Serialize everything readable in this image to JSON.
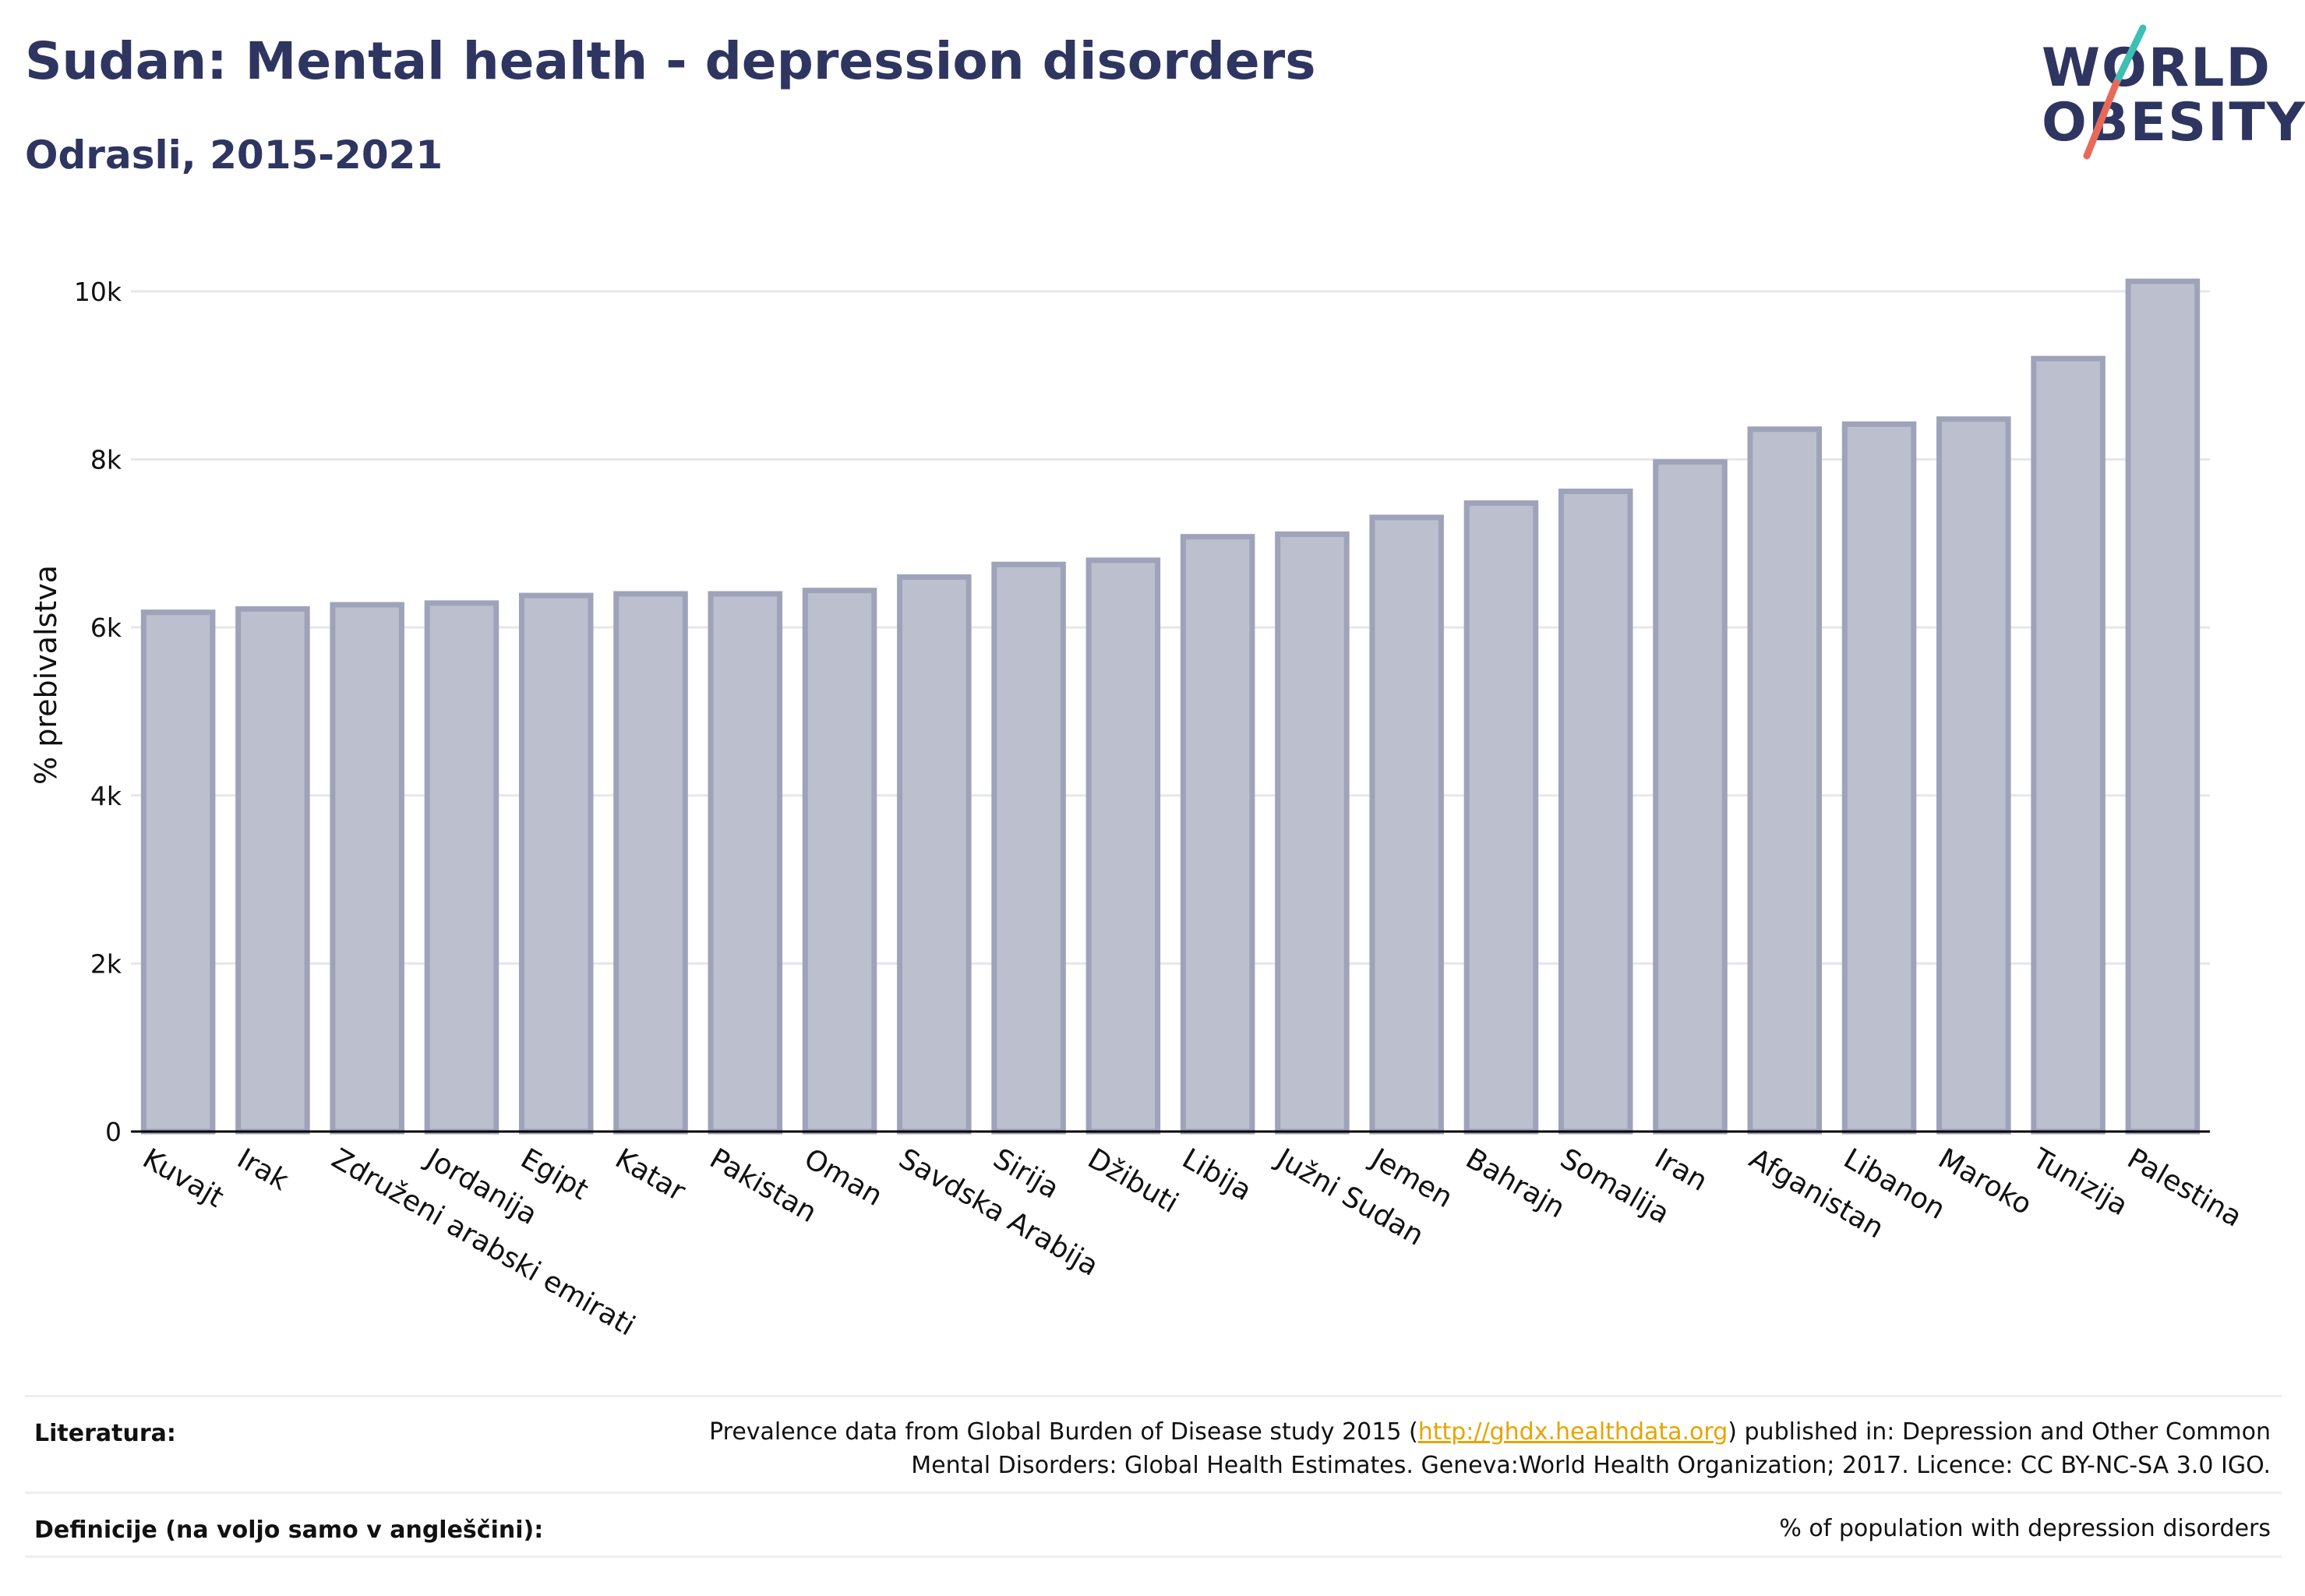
{
  "title": "Sudan: Mental health - depression disorders",
  "subtitle": "Odrasli, 2015-2021",
  "logo": {
    "line1": "WORLD",
    "line2": "OBESITY",
    "text_color": "#2e3560",
    "slash_colors": [
      "#3cbfb5",
      "#e8695a"
    ]
  },
  "colors": {
    "bar_fill": "#bcbfcd",
    "bar_stroke": "#9ea3ba",
    "grid": "#e6e7ec",
    "axis": "#000000",
    "title": "#2e3560"
  },
  "chart_data": {
    "type": "bar",
    "categories": [
      "Kuvajt",
      "Irak",
      "Združeni arabski emirati",
      "Jordanija",
      "Egipt",
      "Katar",
      "Pakistan",
      "Oman",
      "Savdska Arabija",
      "Sirija",
      "Džibuti",
      "Libija",
      "Južni Sudan",
      "Jemen",
      "Bahrajn",
      "Somalija",
      "Iran",
      "Afganistan",
      "Libanon",
      "Maroko",
      "Tunizija",
      "Palestina"
    ],
    "values": [
      6180,
      6220,
      6270,
      6290,
      6380,
      6400,
      6400,
      6440,
      6600,
      6750,
      6800,
      7080,
      7110,
      7310,
      7480,
      7620,
      7970,
      8360,
      8420,
      8480,
      9200,
      10120
    ],
    "ylabel": "% prebivalstva",
    "xlabel": "",
    "ylim": [
      0,
      10500
    ],
    "yticks": [
      0,
      2000,
      4000,
      6000,
      8000,
      10000
    ],
    "ytick_labels": [
      "0",
      "2k",
      "4k",
      "6k",
      "8k",
      "10k"
    ],
    "grid": true
  },
  "footer": {
    "literature_label": "Literatura:",
    "literature_text_before": "Prevalence data from Global Burden of Disease study 2015 (",
    "literature_link": "http://ghdx.healthdata.org",
    "literature_text_after": ") published in: Depression and Other Common Mental Disorders: Global Health Estimates. Geneva:World Health Organization; 2017. Licence: CC BY-NC-SA 3.0 IGO.",
    "definitions_label": "Definicije (na voljo samo v angleščini):",
    "definitions_text": "% of population with depression disorders"
  }
}
